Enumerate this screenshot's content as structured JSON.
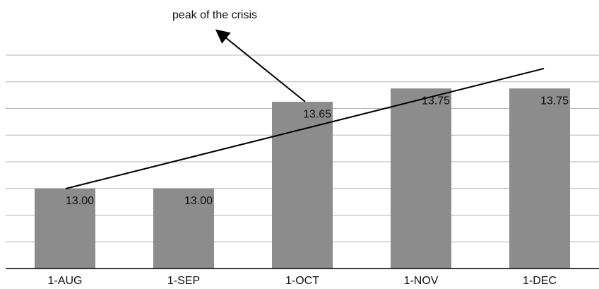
{
  "chart_data": {
    "type": "bar",
    "annotation": "peak of the crisis",
    "categories": [
      "1-AUG",
      "1-SEP",
      "1-OCT",
      "1-NOV",
      "1-DEC"
    ],
    "values": [
      13.0,
      13.0,
      13.65,
      13.75,
      13.75
    ],
    "value_labels": [
      "13.00",
      "13.00",
      "13.65",
      "13.75",
      "13.75"
    ],
    "color": "#8c8c8c",
    "ylim": [
      12.4,
      14.0
    ],
    "yticks": [
      12.6,
      12.8,
      13.0,
      13.2,
      13.4,
      13.6,
      13.8,
      14.0
    ],
    "grid": true
  }
}
